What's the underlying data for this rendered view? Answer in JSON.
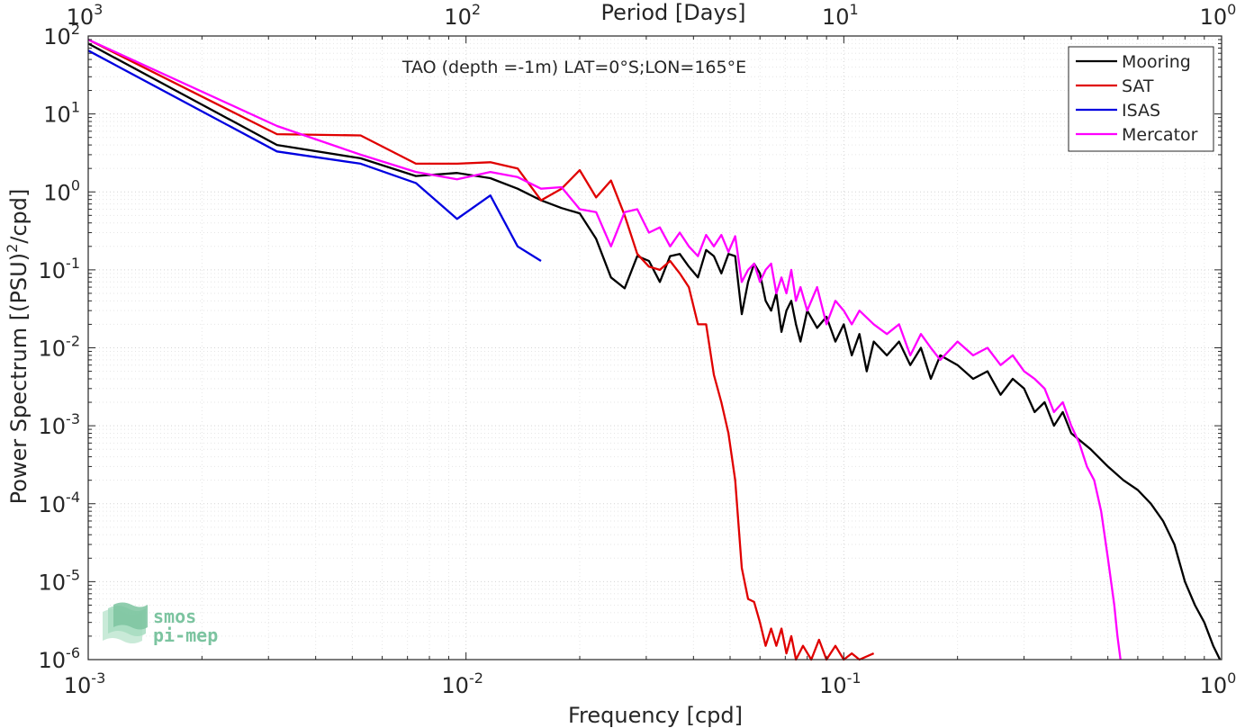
{
  "chart_data": {
    "type": "line",
    "title": "TAO (depth =-1m) LAT=0°S;LON=165°E",
    "xlabel": "Frequency [cpd]",
    "ylabel": "Power Spectrum [(PSU)²/cpd]",
    "ylabel_parts": {
      "before": "Power Spectrum [(PSU)",
      "sup": "2",
      "after": "/cpd]"
    },
    "top_xlabel": "Period [Days]",
    "xscale": "log",
    "yscale": "log",
    "xlim": [
      0.001,
      1
    ],
    "ylim": [
      1e-06,
      100
    ],
    "grid": true,
    "legend_position": "top-right",
    "x_ticks": [
      {
        "value": 0.001,
        "base": "10",
        "exp": "-3"
      },
      {
        "value": 0.01,
        "base": "10",
        "exp": "-2"
      },
      {
        "value": 0.1,
        "base": "10",
        "exp": "-1"
      },
      {
        "value": 1,
        "base": "10",
        "exp": "0"
      }
    ],
    "top_ticks": [
      {
        "value": 0.001,
        "base": "10",
        "exp": "3"
      },
      {
        "value": 0.01,
        "base": "10",
        "exp": "2"
      },
      {
        "value": 0.1,
        "base": "10",
        "exp": "1"
      },
      {
        "value": 1,
        "base": "10",
        "exp": "0"
      }
    ],
    "y_ticks": [
      {
        "value": 100,
        "base": "10",
        "exp": "2"
      },
      {
        "value": 10,
        "base": "10",
        "exp": "1"
      },
      {
        "value": 1,
        "base": "10",
        "exp": "0"
      },
      {
        "value": 0.1,
        "base": "10",
        "exp": "-1"
      },
      {
        "value": 0.01,
        "base": "10",
        "exp": "-2"
      },
      {
        "value": 0.001,
        "base": "10",
        "exp": "-3"
      },
      {
        "value": 0.0001,
        "base": "10",
        "exp": "-4"
      },
      {
        "value": 1e-05,
        "base": "10",
        "exp": "-5"
      },
      {
        "value": 1e-06,
        "base": "10",
        "exp": "-6"
      }
    ],
    "series": [
      {
        "name": "Mooring",
        "color": "#000000",
        "points": [
          [
            0.001,
            80
          ],
          [
            0.00316,
            4.0
          ],
          [
            0.00526,
            2.7
          ],
          [
            0.00737,
            1.6
          ],
          [
            0.00947,
            1.75
          ],
          [
            0.0116,
            1.5
          ],
          [
            0.0137,
            1.1
          ],
          [
            0.0158,
            0.78
          ],
          [
            0.0179,
            0.62
          ],
          [
            0.02,
            0.53
          ],
          [
            0.0221,
            0.25
          ],
          [
            0.0242,
            0.08
          ],
          [
            0.0263,
            0.058
          ],
          [
            0.0284,
            0.15
          ],
          [
            0.0305,
            0.13
          ],
          [
            0.0326,
            0.07
          ],
          [
            0.0347,
            0.15
          ],
          [
            0.0368,
            0.16
          ],
          [
            0.0389,
            0.11
          ],
          [
            0.0411,
            0.08
          ],
          [
            0.0432,
            0.18
          ],
          [
            0.0453,
            0.15
          ],
          [
            0.0474,
            0.09
          ],
          [
            0.0495,
            0.16
          ],
          [
            0.0516,
            0.15
          ],
          [
            0.0537,
            0.027
          ],
          [
            0.0558,
            0.07
          ],
          [
            0.0579,
            0.12
          ],
          [
            0.06,
            0.09
          ],
          [
            0.0621,
            0.04
          ],
          [
            0.0642,
            0.03
          ],
          [
            0.0663,
            0.05
          ],
          [
            0.0684,
            0.016
          ],
          [
            0.0705,
            0.03
          ],
          [
            0.0726,
            0.04
          ],
          [
            0.0747,
            0.02
          ],
          [
            0.0768,
            0.012
          ],
          [
            0.08,
            0.03
          ],
          [
            0.085,
            0.018
          ],
          [
            0.09,
            0.025
          ],
          [
            0.095,
            0.012
          ],
          [
            0.1,
            0.02
          ],
          [
            0.105,
            0.008
          ],
          [
            0.11,
            0.015
          ],
          [
            0.115,
            0.005
          ],
          [
            0.12,
            0.012
          ],
          [
            0.13,
            0.008
          ],
          [
            0.14,
            0.012
          ],
          [
            0.15,
            0.006
          ],
          [
            0.16,
            0.01
          ],
          [
            0.17,
            0.004
          ],
          [
            0.18,
            0.008
          ],
          [
            0.2,
            0.006
          ],
          [
            0.22,
            0.004
          ],
          [
            0.24,
            0.005
          ],
          [
            0.26,
            0.0025
          ],
          [
            0.28,
            0.004
          ],
          [
            0.3,
            0.003
          ],
          [
            0.32,
            0.0015
          ],
          [
            0.34,
            0.002
          ],
          [
            0.36,
            0.001
          ],
          [
            0.38,
            0.0015
          ],
          [
            0.4,
            0.0008
          ],
          [
            0.45,
            0.0005
          ],
          [
            0.5,
            0.0003
          ],
          [
            0.55,
            0.0002
          ],
          [
            0.6,
            0.00015
          ],
          [
            0.65,
            0.0001
          ],
          [
            0.7,
            6e-05
          ],
          [
            0.75,
            3e-05
          ],
          [
            0.8,
            1e-05
          ],
          [
            0.85,
            5e-06
          ],
          [
            0.9,
            3e-06
          ],
          [
            0.95,
            1.5e-06
          ],
          [
            0.99,
            1e-06
          ]
        ]
      },
      {
        "name": "SAT",
        "color": "#e00000",
        "points": [
          [
            0.001,
            90
          ],
          [
            0.00316,
            5.5
          ],
          [
            0.00526,
            5.3
          ],
          [
            0.00737,
            2.3
          ],
          [
            0.00947,
            2.3
          ],
          [
            0.0116,
            2.4
          ],
          [
            0.0137,
            2.0
          ],
          [
            0.0158,
            0.78
          ],
          [
            0.0179,
            1.1
          ],
          [
            0.02,
            1.9
          ],
          [
            0.0221,
            0.85
          ],
          [
            0.0242,
            1.4
          ],
          [
            0.0263,
            0.5
          ],
          [
            0.0284,
            0.16
          ],
          [
            0.0305,
            0.11
          ],
          [
            0.0326,
            0.1
          ],
          [
            0.0347,
            0.13
          ],
          [
            0.0368,
            0.09
          ],
          [
            0.0389,
            0.06
          ],
          [
            0.0411,
            0.02
          ],
          [
            0.0432,
            0.02
          ],
          [
            0.0453,
            0.0045
          ],
          [
            0.0474,
            0.002
          ],
          [
            0.0495,
            0.0008
          ],
          [
            0.0516,
            0.0002
          ],
          [
            0.0537,
            1.5e-05
          ],
          [
            0.0558,
            6e-06
          ],
          [
            0.0579,
            5.5e-06
          ],
          [
            0.06,
            3e-06
          ],
          [
            0.0621,
            1.5e-06
          ],
          [
            0.0642,
            2.5e-06
          ],
          [
            0.0663,
            1.5e-06
          ],
          [
            0.0684,
            2.5e-06
          ],
          [
            0.0705,
            1.2e-06
          ],
          [
            0.0726,
            2e-06
          ],
          [
            0.0747,
            1e-06
          ],
          [
            0.078,
            1.5e-06
          ],
          [
            0.082,
            1e-06
          ],
          [
            0.086,
            1.8e-06
          ],
          [
            0.09,
            1e-06
          ],
          [
            0.095,
            1.5e-06
          ],
          [
            0.1,
            1e-06
          ],
          [
            0.105,
            1.2e-06
          ],
          [
            0.11,
            1e-06
          ],
          [
            0.12,
            1.2e-06
          ]
        ]
      },
      {
        "name": "ISAS",
        "color": "#0000e0",
        "points": [
          [
            0.001,
            65
          ],
          [
            0.00316,
            3.3
          ],
          [
            0.00526,
            2.3
          ],
          [
            0.00737,
            1.3
          ],
          [
            0.00947,
            0.45
          ],
          [
            0.0116,
            0.9
          ],
          [
            0.0137,
            0.2
          ],
          [
            0.0158,
            0.13
          ]
        ]
      },
      {
        "name": "Mercator",
        "color": "#ff00ff",
        "points": [
          [
            0.001,
            90
          ],
          [
            0.00316,
            7.0
          ],
          [
            0.00526,
            3.0
          ],
          [
            0.00737,
            1.8
          ],
          [
            0.00947,
            1.45
          ],
          [
            0.0116,
            1.8
          ],
          [
            0.0137,
            1.55
          ],
          [
            0.0158,
            1.1
          ],
          [
            0.0179,
            1.15
          ],
          [
            0.02,
            0.6
          ],
          [
            0.0221,
            0.55
          ],
          [
            0.0242,
            0.2
          ],
          [
            0.0263,
            0.55
          ],
          [
            0.0284,
            0.6
          ],
          [
            0.0305,
            0.3
          ],
          [
            0.0326,
            0.35
          ],
          [
            0.0347,
            0.2
          ],
          [
            0.0368,
            0.3
          ],
          [
            0.0389,
            0.2
          ],
          [
            0.0411,
            0.15
          ],
          [
            0.0432,
            0.28
          ],
          [
            0.0453,
            0.2
          ],
          [
            0.0474,
            0.28
          ],
          [
            0.0495,
            0.17
          ],
          [
            0.0516,
            0.27
          ],
          [
            0.0537,
            0.07
          ],
          [
            0.0558,
            0.1
          ],
          [
            0.0579,
            0.12
          ],
          [
            0.06,
            0.07
          ],
          [
            0.0621,
            0.1
          ],
          [
            0.0642,
            0.12
          ],
          [
            0.0663,
            0.05
          ],
          [
            0.0684,
            0.08
          ],
          [
            0.0705,
            0.05
          ],
          [
            0.0726,
            0.1
          ],
          [
            0.0747,
            0.04
          ],
          [
            0.0768,
            0.06
          ],
          [
            0.08,
            0.03
          ],
          [
            0.085,
            0.06
          ],
          [
            0.09,
            0.02
          ],
          [
            0.095,
            0.04
          ],
          [
            0.1,
            0.03
          ],
          [
            0.105,
            0.02
          ],
          [
            0.11,
            0.03
          ],
          [
            0.12,
            0.02
          ],
          [
            0.13,
            0.015
          ],
          [
            0.14,
            0.02
          ],
          [
            0.15,
            0.008
          ],
          [
            0.16,
            0.015
          ],
          [
            0.17,
            0.01
          ],
          [
            0.18,
            0.007
          ],
          [
            0.2,
            0.012
          ],
          [
            0.22,
            0.008
          ],
          [
            0.24,
            0.01
          ],
          [
            0.26,
            0.006
          ],
          [
            0.28,
            0.008
          ],
          [
            0.3,
            0.005
          ],
          [
            0.32,
            0.004
          ],
          [
            0.34,
            0.003
          ],
          [
            0.36,
            0.0015
          ],
          [
            0.38,
            0.002
          ],
          [
            0.4,
            0.001
          ],
          [
            0.42,
            0.0006
          ],
          [
            0.44,
            0.0003
          ],
          [
            0.46,
            0.0002
          ],
          [
            0.48,
            8e-05
          ],
          [
            0.5,
            2e-05
          ],
          [
            0.52,
            5e-06
          ],
          [
            0.53,
            2e-06
          ],
          [
            0.54,
            1e-06
          ]
        ]
      }
    ],
    "watermark": {
      "line1": "smos",
      "line2": "pi-mep"
    }
  }
}
